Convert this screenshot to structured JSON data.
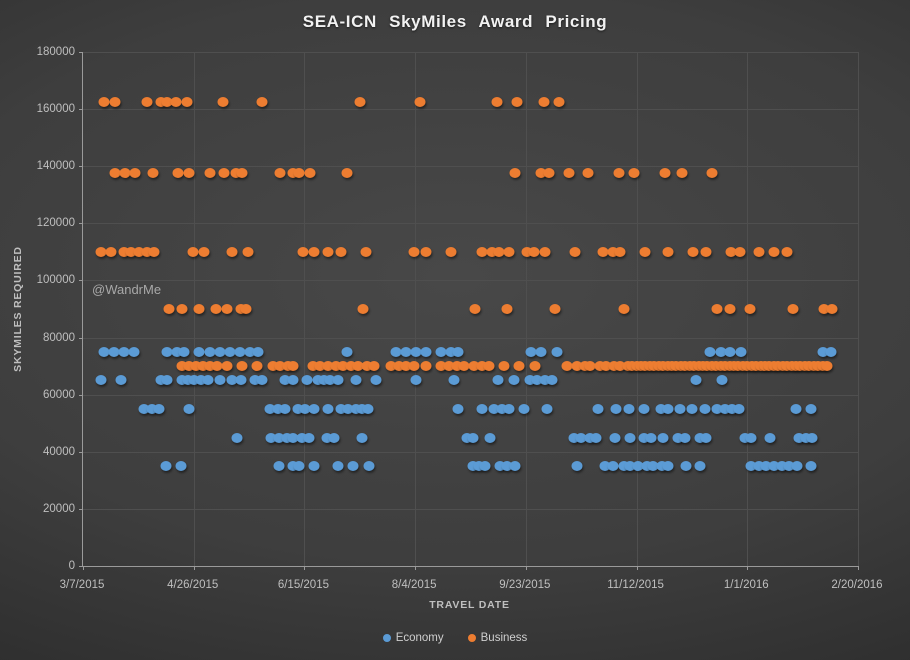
{
  "title": "SEA-ICN SkyMiles Award Pricing",
  "watermark": "@WandrMe",
  "legend": [
    {
      "label": "Economy",
      "color": "#5B9BD5"
    },
    {
      "label": "Business",
      "color": "#ED7D31"
    }
  ],
  "chart_data": {
    "type": "scatter",
    "title": "SEA-ICN SkyMiles Award Pricing",
    "xlabel": "TRAVEL DATE",
    "ylabel": "SKYMILES REQUIRED",
    "grid": true,
    "legend_position": "bottom",
    "x_axis": {
      "tick_labels": [
        "3/7/2015",
        "4/26/2015",
        "6/15/2015",
        "8/4/2015",
        "9/23/2015",
        "11/12/2015",
        "1/1/2016",
        "2/20/2016"
      ],
      "start_date": "3/7/2015",
      "end_date": "2/20/2016",
      "max_days": 350,
      "tick_interval_days": 50
    },
    "y_axis": {
      "min": 0,
      "max": 180000,
      "step": 20000,
      "tick_labels": [
        "0",
        "20000",
        "40000",
        "60000",
        "80000",
        "100000",
        "120000",
        "140000",
        "160000",
        "180000"
      ]
    },
    "series": [
      {
        "name": "Economy",
        "color": "#5B9BD5",
        "levels": [
          {
            "miles": 75000,
            "days": [
              9.5,
              14,
              18.5,
              23,
              37.9,
              42.4,
              45.6,
              52.4,
              57.4,
              61.9,
              66.4,
              70.9,
              75.4,
              79,
              119.2,
              141.3,
              145.9,
              150.4,
              154.9,
              161.7,
              166.2,
              169.3,
              202.3,
              206.8,
              214.1,
              283,
              288,
              292,
              297,
              334,
              338
            ]
          },
          {
            "miles": 65000,
            "days": [
              8,
              17.2,
              35.2,
              37.9,
              44.7,
              47.4,
              50.1,
              53.3,
              56.5,
              61.9,
              67.3,
              71.4,
              77.7,
              80.8,
              91.2,
              94.8,
              101.2,
              106.1,
              108.8,
              111.5,
              115.2,
              123.3,
              132.3,
              150.4,
              167.5,
              187.4,
              194.7,
              201.9,
              205,
              208.6,
              211.8,
              276.8,
              288.6
            ]
          },
          {
            "miles": 55000,
            "days": [
              27.5,
              31.2,
              34.3,
              47.9,
              84.4,
              88.1,
              91.2,
              97.1,
              100.3,
              104.3,
              110.6,
              116.5,
              119.7,
              123.3,
              126,
              128.7,
              169.3,
              180.2,
              185.6,
              189.2,
              192.4,
              199.1,
              209.5,
              232.6,
              240.7,
              246.6,
              253.3,
              261,
              264.2,
              269.6,
              275,
              280.9,
              286.3,
              289.9,
              293.1,
              296.2,
              322,
              328.7
            ]
          },
          {
            "miles": 45000,
            "days": [
              69.6,
              84.9,
              88.5,
              92.1,
              94.8,
              98.9,
              102.1,
              110.2,
              113.3,
              126,
              173.4,
              176.1,
              183.8,
              221.7,
              224.9,
              228.9,
              231.7,
              240.2,
              247,
              253.3,
              256.5,
              261.9,
              268.7,
              271.9,
              278.6,
              281.3,
              298.9,
              301.7,
              310.2,
              323.3,
              326.5,
              329.2
            ]
          },
          {
            "miles": 35000,
            "days": [
              37.4,
              44.2,
              88.5,
              94.8,
              97.5,
              104.3,
              115.2,
              121.9,
              129.2,
              176.1,
              178.8,
              181.6,
              188.3,
              191.5,
              195.1,
              223.1,
              235.7,
              239.4,
              244.3,
              247,
              250.6,
              254.7,
              257.4,
              261.5,
              264.2,
              272.3,
              278.6,
              301.7,
              305.3,
              308.4,
              312.1,
              315.7,
              318.8,
              322.4,
              328.7
            ]
          }
        ]
      },
      {
        "name": "Business",
        "color": "#ED7D31",
        "levels": [
          {
            "miles": 162500,
            "days": [
              9.5,
              14.5,
              29,
              35,
              38,
              42,
              47,
              63,
              81,
              125,
              152,
              187,
              196,
              208,
              215
            ]
          },
          {
            "miles": 137500,
            "days": [
              14.5,
              19,
              23.5,
              31.6,
              43,
              48,
              57.4,
              63.7,
              69,
              72,
              89,
              95,
              97.5,
              102.5,
              119,
              195,
              207,
              210.4,
              219.5,
              228,
              242,
              249,
              263,
              270.5,
              284
            ]
          },
          {
            "miles": 110000,
            "days": [
              8,
              12.6,
              18.5,
              21.7,
              25.3,
              29,
              32,
              49.7,
              54.6,
              67.3,
              74.5,
              99.3,
              104.3,
              110.6,
              116.5,
              128,
              149.5,
              155,
              166,
              180,
              184.7,
              188,
              192.4,
              200.5,
              203.7,
              208.6,
              222,
              235,
              239.4,
              242.5,
              254,
              264,
              275.5,
              281.3,
              292.6,
              296.7,
              305.3,
              312,
              318
            ]
          },
          {
            "miles": 90000,
            "days": [
              39,
              44.7,
              52.4,
              60,
              65,
              71.4,
              73.6,
              126.4,
              177,
              191.5,
              213,
              244.3,
              286.3,
              292.2,
              301.2,
              320.6,
              334.6,
              338.3
            ]
          },
          {
            "miles": 70000,
            "days": [
              44.7,
              47.9,
              51,
              54.2,
              57.4,
              60.5,
              65,
              71.8,
              78.6,
              85.8,
              89,
              92.6,
              94.8,
              103.9,
              107,
              110.6,
              114.3,
              117.4,
              121,
              124.2,
              128.3,
              131.4,
              139.1,
              142.7,
              145.9,
              149.5,
              154.9,
              161.7,
              165.3,
              168.9,
              172.1,
              176.6,
              180.2,
              183.3,
              190.1,
              196.9,
              204.1,
              218.6,
              223.1,
              226.7,
              228.8,
              233.7,
              236,
              240,
              242.4,
              246,
              248,
              250,
              252,
              254,
              256,
              258,
              260,
              262,
              264,
              266,
              268,
              270,
              272,
              274,
              276,
              278,
              280,
              282,
              284,
              286,
              288,
              290,
              292,
              294,
              296,
              298,
              300,
              302,
              304,
              306,
              308,
              310,
              312,
              314,
              316,
              318,
              320,
              322,
              324,
              326,
              328,
              330,
              332,
              334,
              336
            ]
          }
        ]
      }
    ]
  }
}
